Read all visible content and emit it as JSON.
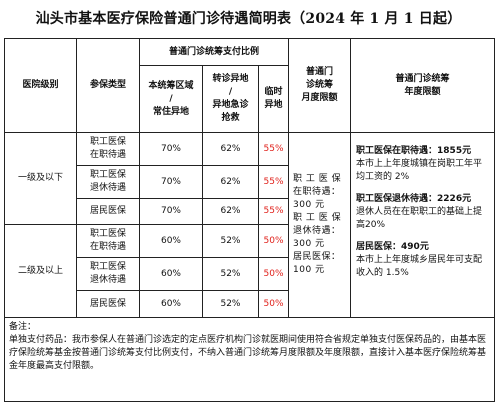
{
  "title": "汕头市基本医疗保险普通门诊待遇简明表（2024 年 1 月 1 日起）",
  "headers": {
    "level": "医院级别",
    "insurance_type": "参保类型",
    "ratio_group": "普通门诊统筹支付比例",
    "local": "本统筹区域\n/\n常住异地",
    "transfer": "转诊异地\n/\n异地急诊\n抢救",
    "temp": "临时\n异地",
    "monthly_limit": "普通门\n诊统筹\n月度限额",
    "annual_limit": "普通门诊统筹\n年度限额"
  },
  "groups": [
    {
      "level": "一级及以下",
      "rows": [
        {
          "type": "职工医保\n在职待遇",
          "local": "70%",
          "transfer": "62%",
          "temp": "55%"
        },
        {
          "type": "职工医保\n退休待遇",
          "local": "70%",
          "transfer": "62%",
          "temp": "55%"
        },
        {
          "type": "居民医保",
          "local": "70%",
          "transfer": "62%",
          "temp": "55%"
        }
      ]
    },
    {
      "level": "二级及以上",
      "rows": [
        {
          "type": "职工医保\n在职待遇",
          "local": "60%",
          "transfer": "52%",
          "temp": "50%"
        },
        {
          "type": "职工医保\n退休待遇",
          "local": "60%",
          "transfer": "52%",
          "temp": "50%"
        },
        {
          "type": "居民医保",
          "local": "60%",
          "transfer": "52%",
          "temp": "50%"
        }
      ]
    }
  ],
  "monthly": "职 工 医 保\n在职待遇：\n300 元\n职 工 医 保\n退休待遇：\n300 元\n居民医保：\n100 元",
  "annual": [
    {
      "head": "职工医保在职待遇：1855元",
      "body": "本市上上年度城镇在岗职工年平均工资的 2%"
    },
    {
      "head": "职工医保退休待遇：2226元",
      "body": "退休人员在在职职工的基础上提高20%"
    },
    {
      "head": "居民医保：490元",
      "body": "本市上上年度城乡居民年可支配收入的 1.5%"
    }
  ],
  "notes": {
    "label": "备注：",
    "text": "单独支付药品：我市参保人在普通门诊选定的定点医疗机构门诊就医期间使用符合省规定单独支付医保药品的，由基本医疗保险统筹基金按普通门诊统筹支付比例支付，不纳入普通门诊统筹月度限额及年度限额，直接计入基本医疗保险统筹基金年度最高支付限额。"
  },
  "colors": {
    "temp_ratio": "#e0211b",
    "border": "#222222"
  }
}
